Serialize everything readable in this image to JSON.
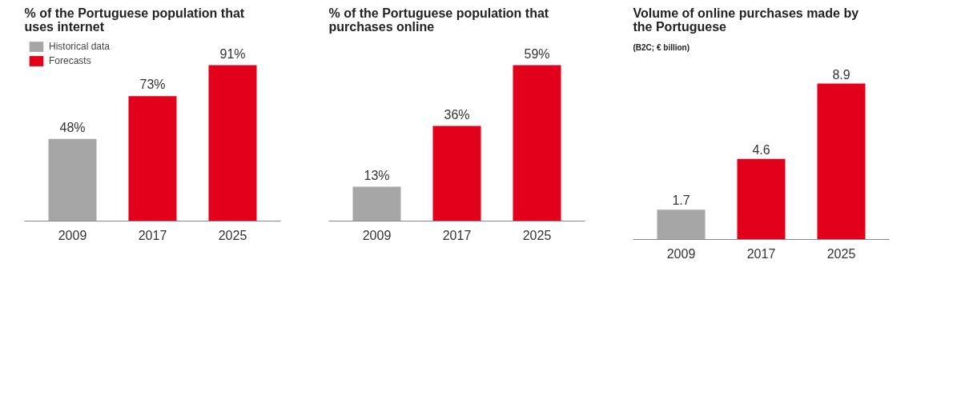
{
  "chart_data": [
    {
      "type": "bar",
      "title": "% of the Portuguese population that uses internet",
      "categories": [
        "2009",
        "2017",
        "2025"
      ],
      "legend": "top left",
      "grid": false,
      "series": [
        {
          "name": "Historical data",
          "color": "#a6a6a6",
          "values": [
            48,
            null,
            null
          ],
          "value_labels": [
            "48%",
            null,
            null
          ]
        },
        {
          "name": "Forecasts",
          "color": "#e2001a",
          "values": [
            null,
            73,
            91
          ],
          "value_labels": [
            null,
            "73%",
            "91%"
          ]
        }
      ]
    },
    {
      "type": "bar",
      "title": "% of the Portuguese population that purchases online",
      "categories": [
        "2009",
        "2017",
        "2025"
      ],
      "grid": false,
      "series": [
        {
          "color": "#a6a6a6",
          "values": [
            13,
            null,
            null
          ],
          "value_labels": [
            "13%",
            null,
            null
          ]
        },
        {
          "color": "#e2001a",
          "values": [
            null,
            36,
            59
          ],
          "value_labels": [
            null,
            "36%",
            "59%"
          ]
        }
      ]
    },
    {
      "type": "bar",
      "title": "Volume of online purchases made by the Portuguese",
      "subtitle": "(B2C; € billion)",
      "categories": [
        "2009",
        "2017",
        "2025"
      ],
      "grid": false,
      "data_labels": true,
      "series": [
        {
          "color": "#a6a6a6",
          "values": [
            1.7,
            null,
            null
          ]
        },
        {
          "color": "#e2001a",
          "values": [
            null,
            4.6,
            8.9
          ]
        }
      ]
    }
  ]
}
